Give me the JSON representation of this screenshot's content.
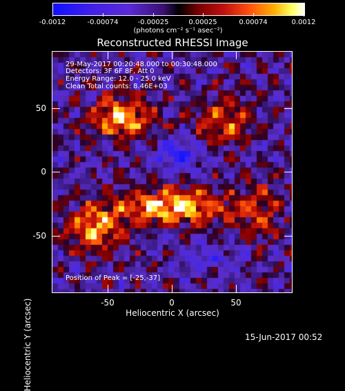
{
  "colorbar": {
    "tick_labels": [
      "-0.0012",
      "-0.00074",
      "-0.00025",
      "0.00025",
      "0.00074",
      "0.0012"
    ],
    "units": "(photons cm⁻² s⁻¹ asec⁻²)"
  },
  "plot": {
    "title": "Reconstructed RHESSI Image",
    "info_lines": [
      "29-May-2017 00:20:48.000 to 00:30:48.000",
      "Detectors: 3F 6F 8F, Att 0",
      "Energy Range: 12.0 - 25.0 keV",
      "Clean    Total counts: 8.46E+03"
    ],
    "peak_text": "Position of Peak = [-25,-37]",
    "xlabel": "Heliocentric X (arcsec)",
    "ylabel": "Heliocentric Y (arcsec)",
    "xticks": [
      "-50",
      "0",
      "50"
    ],
    "yticks": [
      "50",
      "0",
      "-50"
    ]
  },
  "footer": {
    "timestamp": "15-Jun-2017 00:52"
  },
  "colors": {
    "background": "#000000",
    "negative_max": "#1010ff",
    "positive_max": "#ffffff",
    "hot": "#ff5010"
  }
}
